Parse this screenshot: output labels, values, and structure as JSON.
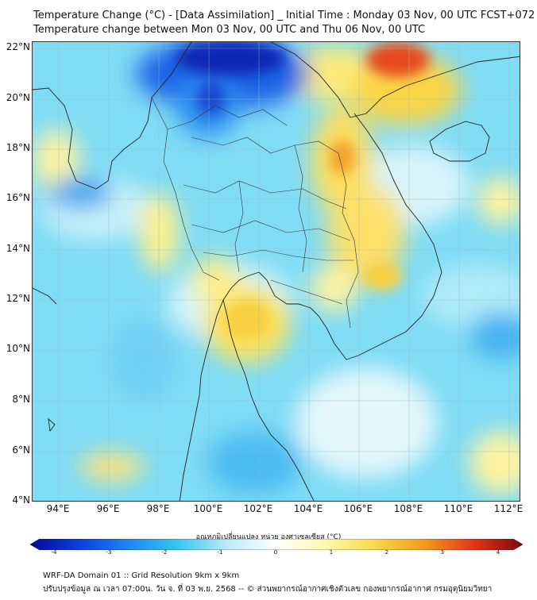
{
  "title_line1": "Temperature Change (°C) - [Data Assimilation] _ Initial Time : Monday 03 Nov, 00 UTC FCST+072",
  "title_line2": "Temperature change between Mon 03 Nov, 00 UTC and Thu 06 Nov, 00 UTC",
  "lat_labels": [
    "22°N",
    "20°N",
    "18°N",
    "16°N",
    "14°N",
    "12°N",
    "10°N",
    "8°N",
    "6°N",
    "4°N"
  ],
  "lon_labels": [
    "94°E",
    "96°E",
    "98°E",
    "100°E",
    "102°E",
    "104°E",
    "106°E",
    "108°E",
    "110°E",
    "112°E"
  ],
  "colorbar": {
    "title": "อุณหภูมิเปลี่ยนแปลง หน่วย องศาเซลเซียส (°C)",
    "ticks": [
      "-4",
      "-3",
      "-2",
      "-1",
      "0",
      "1",
      "2",
      "3",
      "4"
    ],
    "range": [
      -4,
      4
    ],
    "colors": [
      "#06069a",
      "#0b3fe0",
      "#1f86f2",
      "#36c7f1",
      "#b9ecf7",
      "#ffffff",
      "#fff8b0",
      "#f7d94a",
      "#f39a1f",
      "#e6341b",
      "#7d0a0a"
    ]
  },
  "footer_line1": "WRF-DA Domain 01 :: Grid Resolution 9km x 9km",
  "footer_line2": "ปรับปรุงข้อมูล ณ เวลา 07:00น. วัน จ. ที่ 03 พ.ย. 2568 -- © ส่วนพยากรณ์อากาศเชิงตัวเลข กองพยากรณ์อากาศ กรมอุตุนิยมวิทยา"
}
